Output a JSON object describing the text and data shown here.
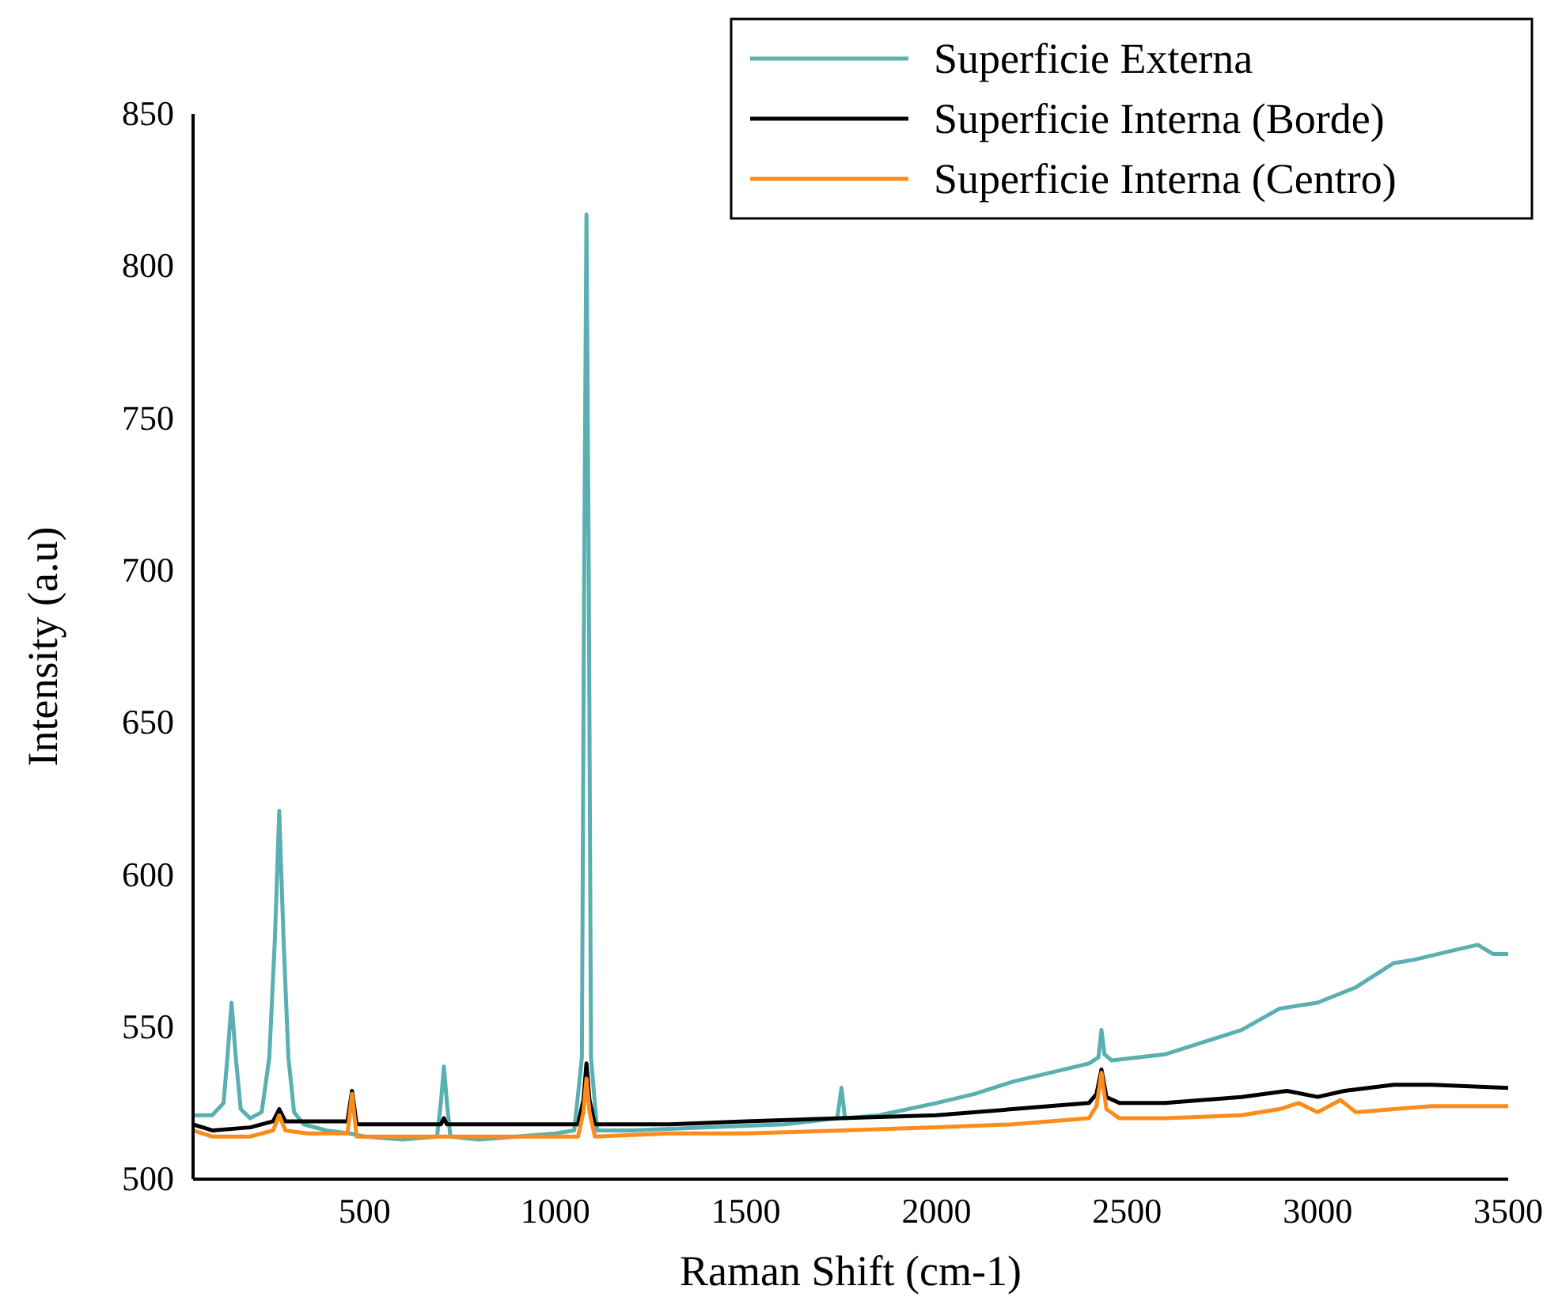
{
  "chart_data": {
    "type": "line",
    "xlabel": "Raman Shift (cm-1)",
    "ylabel": "Intensity (a.u)",
    "xlim": [
      50,
      3500
    ],
    "xticks": [
      500,
      1000,
      1500,
      2000,
      2500,
      3000,
      3500
    ],
    "ylim": [
      500,
      850
    ],
    "yticks": [
      500,
      550,
      600,
      650,
      700,
      750,
      800,
      850
    ],
    "grid": false,
    "legend": "top right",
    "marker": "none",
    "line_style": "solid",
    "series": [
      {
        "name": "Superficie Externa",
        "color": "#5aafb0",
        "x": [
          50,
          100,
          130,
          140,
          151,
          162,
          175,
          200,
          230,
          250,
          265,
          276,
          287,
          300,
          315,
          340,
          400,
          460,
          500,
          600,
          690,
          700,
          708,
          716,
          725,
          800,
          900,
          1000,
          1050,
          1070,
          1076,
          1082,
          1088,
          1094,
          1110,
          1200,
          1400,
          1600,
          1740,
          1751,
          1760,
          1850,
          2000,
          2100,
          2200,
          2300,
          2400,
          2425,
          2433,
          2441,
          2460,
          2600,
          2700,
          2800,
          2900,
          3000,
          3100,
          3200,
          3250,
          3350,
          3420,
          3460,
          3500
        ],
        "values": [
          521,
          521,
          525,
          540,
          558,
          540,
          523,
          520,
          522,
          540,
          580,
          621,
          580,
          540,
          522,
          518,
          516,
          515,
          514,
          513,
          514,
          525,
          537,
          525,
          514,
          513,
          514,
          515,
          516,
          540,
          700,
          817,
          700,
          540,
          516,
          516,
          517,
          518,
          520,
          530,
          520,
          521,
          525,
          528,
          532,
          535,
          538,
          540,
          549,
          541,
          539,
          541,
          545,
          549,
          556,
          558,
          563,
          571,
          572,
          575,
          577,
          574,
          574
        ]
      },
      {
        "name": "Superficie Interna (Borde)",
        "color": "#000000",
        "x": [
          50,
          100,
          200,
          260,
          276,
          292,
          400,
          455,
          467,
          479,
          600,
          700,
          708,
          716,
          900,
          1060,
          1074,
          1082,
          1090,
          1104,
          1300,
          1500,
          1750,
          2000,
          2200,
          2400,
          2420,
          2433,
          2446,
          2480,
          2600,
          2800,
          2920,
          3000,
          3070,
          3200,
          3300,
          3500
        ],
        "values": [
          518,
          516,
          517,
          519,
          523,
          519,
          519,
          519,
          529,
          518,
          518,
          518,
          520,
          518,
          518,
          518,
          526,
          538,
          526,
          518,
          518,
          519,
          520,
          521,
          523,
          525,
          528,
          536,
          527,
          525,
          525,
          527,
          529,
          527,
          529,
          531,
          531,
          530
        ]
      },
      {
        "name": "Superficie Interna (Centro)",
        "color": "#ff8c1a",
        "x": [
          50,
          100,
          200,
          260,
          276,
          292,
          350,
          455,
          467,
          479,
          700,
          1000,
          1060,
          1074,
          1082,
          1090,
          1104,
          1300,
          1500,
          1750,
          2000,
          2200,
          2400,
          2420,
          2433,
          2446,
          2480,
          2600,
          2800,
          2900,
          2950,
          3000,
          3060,
          3100,
          3300,
          3500
        ],
        "values": [
          516,
          514,
          514,
          516,
          521,
          516,
          515,
          515,
          528,
          514,
          514,
          514,
          514,
          522,
          533,
          522,
          514,
          515,
          515,
          516,
          517,
          518,
          520,
          524,
          535,
          523,
          520,
          520,
          521,
          523,
          525,
          522,
          526,
          522,
          524,
          524
        ]
      }
    ]
  }
}
